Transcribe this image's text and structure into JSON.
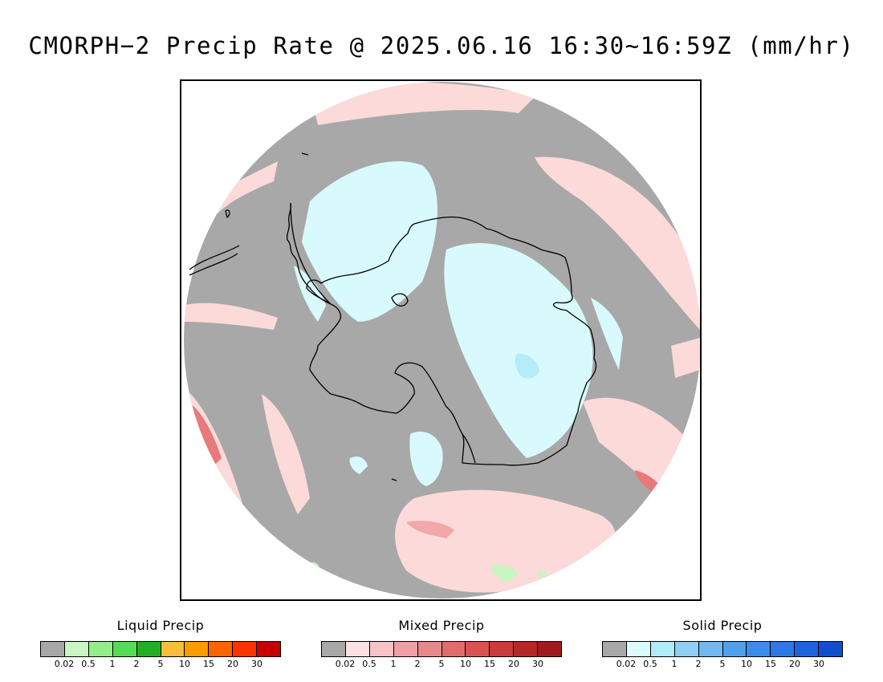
{
  "title": "CMORPH−2 Precip Rate @ 2025.06.16 16:30~16:59Z (mm/hr)",
  "map": {
    "projection": "south-polar-stereographic",
    "colors": {
      "background": "#a8a8a8",
      "liquid_light": "#c8f5c0",
      "mixed_light": "#fcdada",
      "mixed_medium": "#f2a8a8",
      "mixed_strong": "#e87a7a",
      "solid_light": "#d8fafc",
      "solid_medium": "#b4ecf8",
      "coastline": "#000000"
    }
  },
  "legends": [
    {
      "id": "liquid",
      "title": "Liquid Precip",
      "colors": [
        "#a8a8a8",
        "#c8f8c0",
        "#94ee88",
        "#52de52",
        "#22b022",
        "#fcbc3c",
        "#fc9c00",
        "#fc6400",
        "#fc3400",
        "#c80000"
      ],
      "ticks": [
        "0.02",
        "0.5",
        "1",
        "2",
        "5",
        "10",
        "15",
        "20",
        "30"
      ]
    },
    {
      "id": "mixed",
      "title": "Mixed Precip",
      "colors": [
        "#a8a8a8",
        "#fce0e4",
        "#f8c4c8",
        "#f0a0a4",
        "#e88888",
        "#e06c6c",
        "#d85454",
        "#c83c3c",
        "#b42828",
        "#a01c1c"
      ],
      "ticks": [
        "0.02",
        "0.5",
        "1",
        "2",
        "5",
        "10",
        "15",
        "20",
        "30"
      ]
    },
    {
      "id": "solid",
      "title": "Solid Precip",
      "colors": [
        "#a8a8a8",
        "#dcfcfc",
        "#b0ecf8",
        "#90d0f8",
        "#70b8f4",
        "#50a0f0",
        "#3c8cec",
        "#2c78e4",
        "#1c64dc",
        "#1050d0"
      ],
      "ticks": [
        "0.02",
        "0.5",
        "1",
        "2",
        "5",
        "10",
        "15",
        "20",
        "30"
      ]
    }
  ]
}
